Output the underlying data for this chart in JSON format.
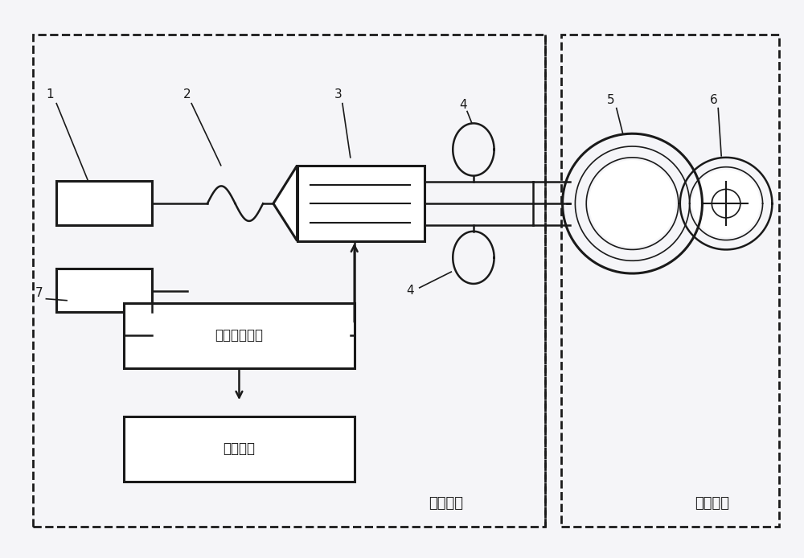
{
  "bg_color": "#f5f5f8",
  "line_color": "#1a1a1a",
  "label_1": "1",
  "label_2": "2",
  "label_3": "3",
  "label_4": "4",
  "label_5": "5",
  "label_6": "6",
  "label_7": "7",
  "text_signal": "信号采集单元",
  "text_merge": "合并单元",
  "text_control": "控制单元",
  "text_sensor": "传感单元"
}
